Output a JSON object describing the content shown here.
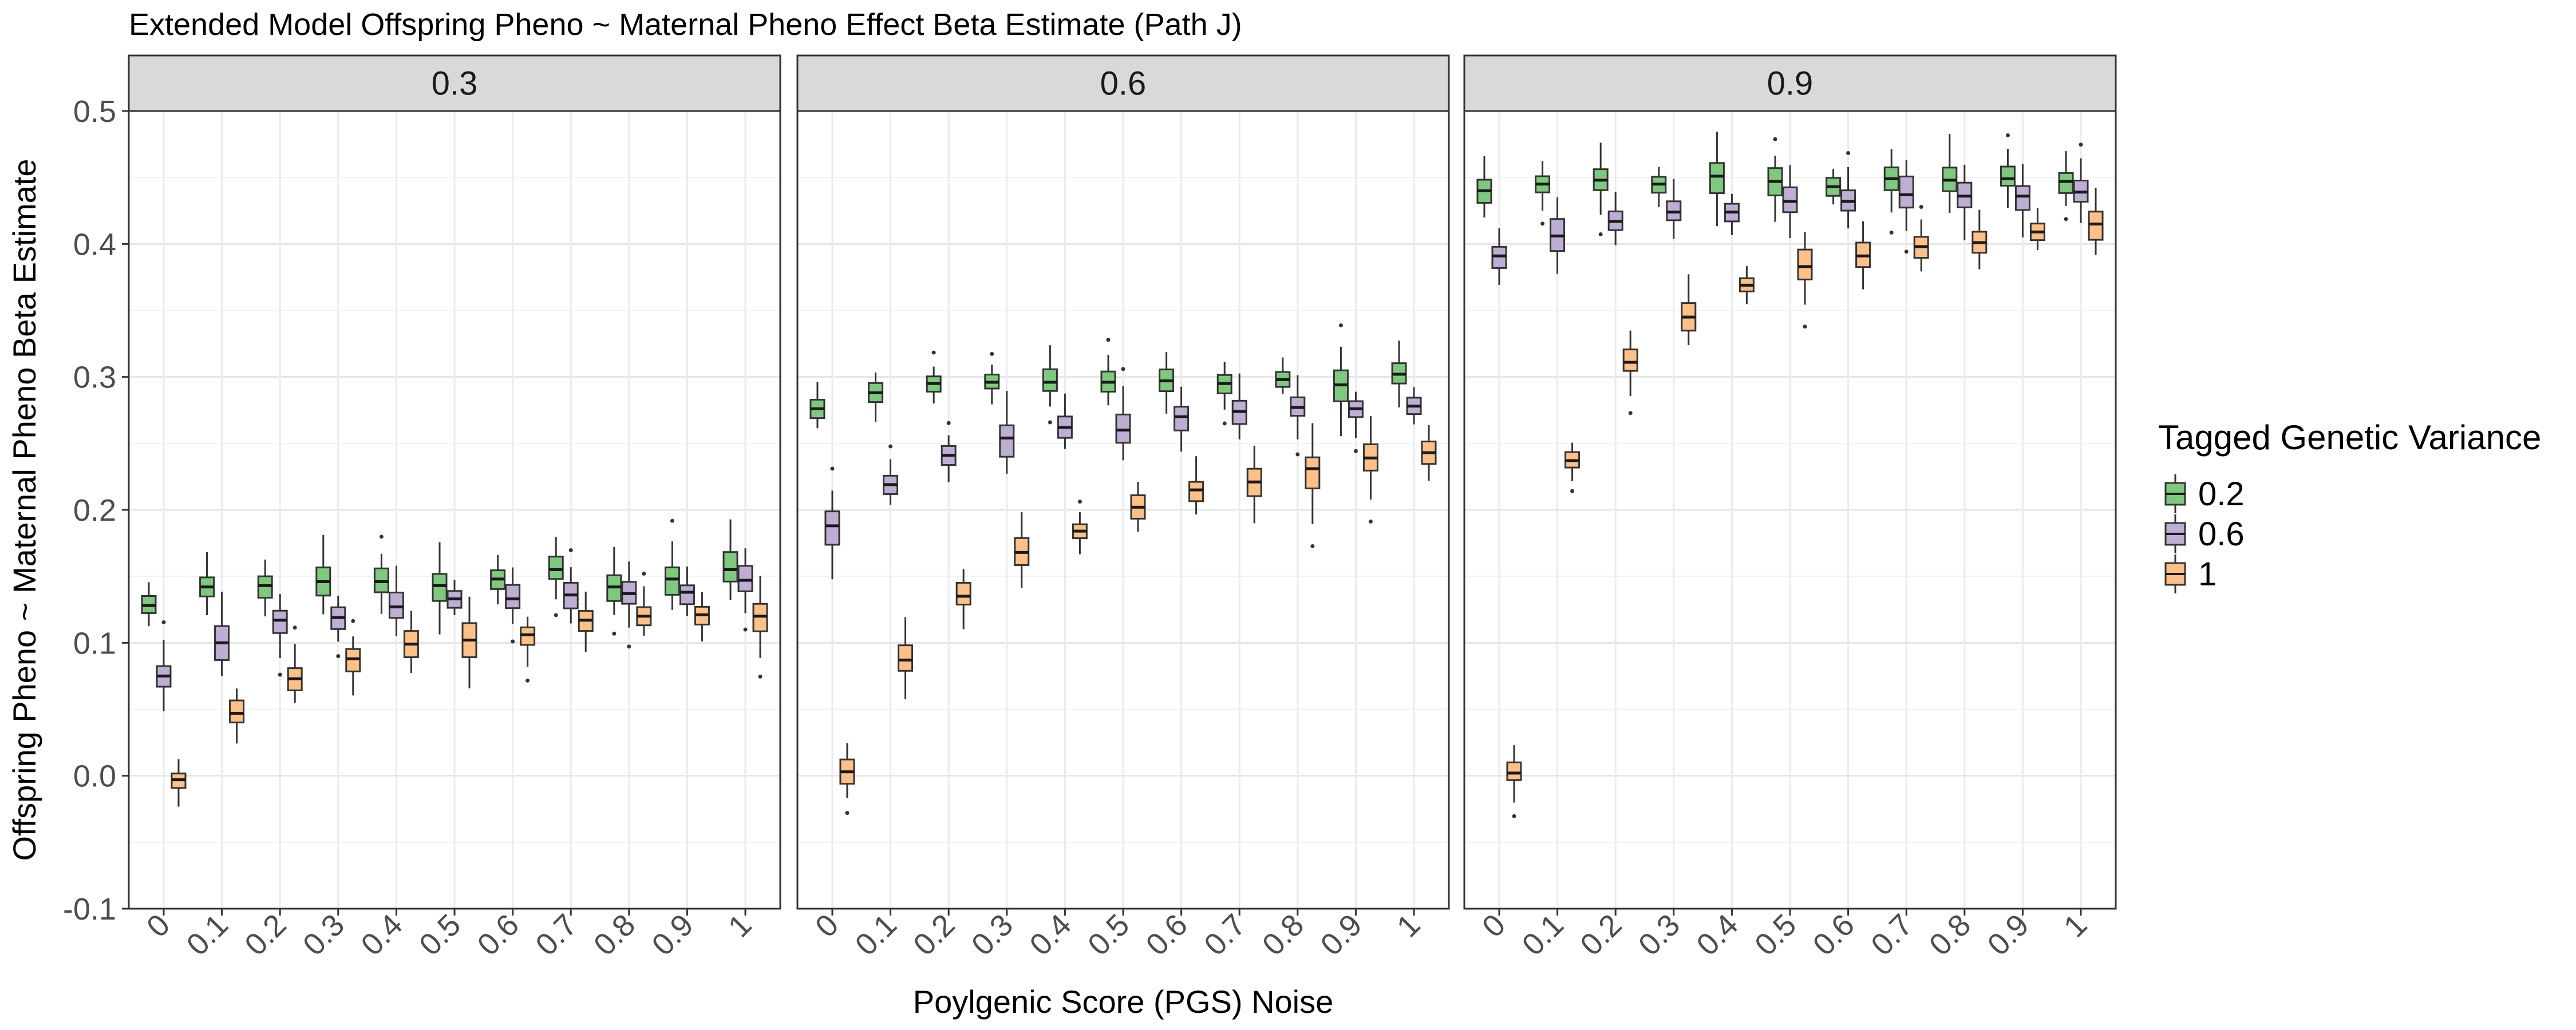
{
  "chart_data": {
    "type": "boxplot",
    "title": "Extended Model Offspring Pheno ~ Maternal Pheno Effect Beta Estimate (Path J)",
    "xlabel": "Poylgenic Score (PGS) Noise",
    "ylabel": "Offspring Pheno ~ Maternal Pheno Beta Estimate",
    "ylim": [
      -0.1,
      0.5
    ],
    "yticks": [
      "-0.1",
      "0.0",
      "0.1",
      "0.2",
      "0.3",
      "0.4",
      "0.5"
    ],
    "categories": [
      "0",
      "0.1",
      "0.2",
      "0.3",
      "0.4",
      "0.5",
      "0.6",
      "0.7",
      "0.8",
      "0.9",
      "1"
    ],
    "grid": true,
    "legend": {
      "title": "Tagged Genetic Variance",
      "placement": "right",
      "entries": [
        "0.2",
        "0.6",
        "1"
      ]
    },
    "series_colors": [
      "#7fc97f",
      "#beaed4",
      "#fdc086"
    ],
    "panels": [
      {
        "label": "0.3",
        "series": [
          {
            "name": "0.2",
            "median": [
              0.128,
              0.142,
              0.143,
              0.146,
              0.146,
              0.143,
              0.148,
              0.155,
              0.142,
              0.148,
              0.155
            ]
          },
          {
            "name": "0.6",
            "median": [
              0.075,
              0.1,
              0.117,
              0.119,
              0.127,
              0.133,
              0.133,
              0.136,
              0.137,
              0.138,
              0.147
            ]
          },
          {
            "name": "1",
            "median": [
              -0.003,
              0.047,
              0.073,
              0.088,
              0.099,
              0.102,
              0.106,
              0.117,
              0.12,
              0.121,
              0.12
            ]
          }
        ]
      },
      {
        "label": "0.6",
        "series": [
          {
            "name": "0.2",
            "median": [
              0.276,
              0.288,
              0.295,
              0.296,
              0.296,
              0.296,
              0.297,
              0.295,
              0.298,
              0.294,
              0.302
            ]
          },
          {
            "name": "0.6",
            "median": [
              0.188,
              0.219,
              0.241,
              0.254,
              0.262,
              0.26,
              0.27,
              0.274,
              0.277,
              0.276,
              0.278
            ]
          },
          {
            "name": "1",
            "median": [
              0.003,
              0.087,
              0.135,
              0.168,
              0.184,
              0.202,
              0.215,
              0.221,
              0.231,
              0.239,
              0.243
            ]
          }
        ]
      },
      {
        "label": "0.9",
        "series": [
          {
            "name": "0.2",
            "median": [
              0.44,
              0.445,
              0.448,
              0.445,
              0.451,
              0.447,
              0.443,
              0.449,
              0.448,
              0.449,
              0.447
            ]
          },
          {
            "name": "0.6",
            "median": [
              0.391,
              0.406,
              0.417,
              0.424,
              0.424,
              0.432,
              0.432,
              0.437,
              0.436,
              0.436,
              0.439
            ]
          },
          {
            "name": "1",
            "median": [
              0.002,
              0.237,
              0.311,
              0.345,
              0.369,
              0.383,
              0.391,
              0.398,
              0.401,
              0.409,
              0.415
            ]
          }
        ]
      }
    ]
  }
}
